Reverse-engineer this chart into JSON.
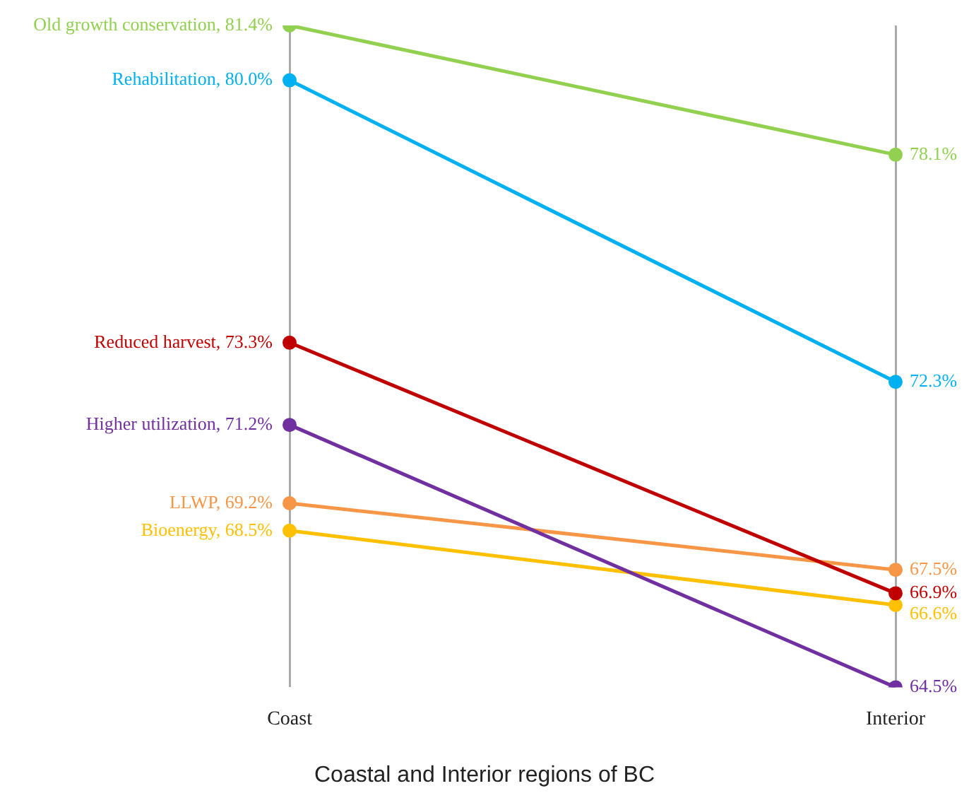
{
  "chart_data": {
    "type": "line",
    "xlabel": "Coastal and Interior regions of BC",
    "categories": [
      "Coast",
      "Interior"
    ],
    "grid": "x",
    "legend": false,
    "marker": "circle",
    "line_style": "solid",
    "data_labels": true,
    "series": [
      {
        "name": "Old growth conservation,",
        "color": "#92d050",
        "values": [
          81.4,
          78.1
        ],
        "value_labels": [
          "81.4%",
          "78.1%"
        ]
      },
      {
        "name": "Rehabilitation,",
        "color": "#00b0f0",
        "values": [
          80.0,
          72.3
        ],
        "value_labels": [
          "80.0%",
          "72.3%"
        ]
      },
      {
        "name": "Reduced harvest,",
        "color": "#c00000",
        "values": [
          73.3,
          66.9
        ],
        "value_labels": [
          "73.3%",
          "66.9%"
        ]
      },
      {
        "name": "Higher utilization,",
        "color": "#7030a0",
        "values": [
          71.2,
          64.5
        ],
        "value_labels": [
          "71.2%",
          "64.5%"
        ]
      },
      {
        "name": "LLWP,",
        "color": "#f79646",
        "values": [
          69.2,
          67.5
        ],
        "value_labels": [
          "69.2%",
          "67.5%"
        ]
      },
      {
        "name": "Bioenergy,",
        "color": "#ffc000",
        "values": [
          68.5,
          66.6
        ],
        "value_labels": [
          "68.5%",
          "66.6%"
        ]
      }
    ]
  }
}
